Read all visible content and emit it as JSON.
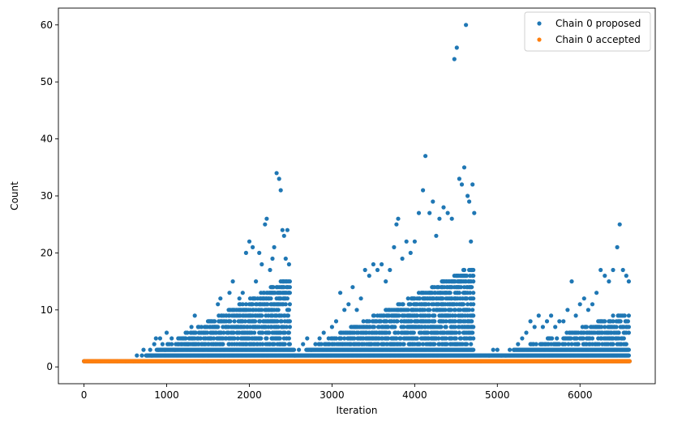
{
  "chart_data": {
    "type": "scatter",
    "title": "",
    "xlabel": "Iteration",
    "ylabel": "Count",
    "xlim": [
      -310,
      6910
    ],
    "ylim": [
      -2.95,
      62.95
    ],
    "xticks": [
      0,
      1000,
      2000,
      3000,
      4000,
      5000,
      6000
    ],
    "yticks": [
      0,
      10,
      20,
      30,
      40,
      50,
      60
    ],
    "grid": false,
    "legend_position": "top-right",
    "colors": {
      "proposed": "#1f77b4",
      "accepted": "#ff7f0e"
    },
    "series": [
      {
        "name": "Chain 0 proposed",
        "points": [
          [
            0,
            1
          ],
          [
            100,
            1
          ],
          [
            200,
            1
          ],
          [
            300,
            1
          ],
          [
            400,
            1
          ],
          [
            500,
            1
          ],
          [
            600,
            1
          ],
          [
            640,
            2
          ],
          [
            700,
            2
          ],
          [
            720,
            3
          ],
          [
            760,
            2
          ],
          [
            800,
            3
          ],
          [
            820,
            2
          ],
          [
            850,
            4
          ],
          [
            870,
            5
          ],
          [
            900,
            3
          ],
          [
            920,
            5
          ],
          [
            950,
            4
          ],
          [
            980,
            3
          ],
          [
            1000,
            6
          ],
          [
            1030,
            4
          ],
          [
            1060,
            5
          ],
          [
            1100,
            3
          ],
          [
            1150,
            4
          ],
          [
            1200,
            5
          ],
          [
            1230,
            6
          ],
          [
            1260,
            4
          ],
          [
            1300,
            7
          ],
          [
            1340,
            9
          ],
          [
            1380,
            5
          ],
          [
            1420,
            6
          ],
          [
            1460,
            7
          ],
          [
            1500,
            8
          ],
          [
            1540,
            6
          ],
          [
            1580,
            7
          ],
          [
            1620,
            11
          ],
          [
            1650,
            12
          ],
          [
            1690,
            8
          ],
          [
            1720,
            9
          ],
          [
            1760,
            13
          ],
          [
            1800,
            15
          ],
          [
            1840,
            10
          ],
          [
            1880,
            12
          ],
          [
            1920,
            13
          ],
          [
            1960,
            20
          ],
          [
            2000,
            22
          ],
          [
            2040,
            21
          ],
          [
            2080,
            15
          ],
          [
            2120,
            20
          ],
          [
            2150,
            18
          ],
          [
            2190,
            25
          ],
          [
            2210,
            26
          ],
          [
            2250,
            17
          ],
          [
            2280,
            19
          ],
          [
            2300,
            21
          ],
          [
            2330,
            34
          ],
          [
            2360,
            33
          ],
          [
            2380,
            31
          ],
          [
            2400,
            24
          ],
          [
            2420,
            23
          ],
          [
            2440,
            19
          ],
          [
            2460,
            24
          ],
          [
            2480,
            18
          ],
          [
            2550,
            2
          ],
          [
            2600,
            3
          ],
          [
            2650,
            4
          ],
          [
            2700,
            5
          ],
          [
            2750,
            3
          ],
          [
            2800,
            4
          ],
          [
            2850,
            5
          ],
          [
            2900,
            6
          ],
          [
            2950,
            4
          ],
          [
            3000,
            7
          ],
          [
            3050,
            8
          ],
          [
            3100,
            13
          ],
          [
            3150,
            10
          ],
          [
            3200,
            11
          ],
          [
            3250,
            14
          ],
          [
            3300,
            10
          ],
          [
            3350,
            12
          ],
          [
            3400,
            17
          ],
          [
            3450,
            16
          ],
          [
            3500,
            18
          ],
          [
            3550,
            17
          ],
          [
            3600,
            18
          ],
          [
            3650,
            15
          ],
          [
            3700,
            17
          ],
          [
            3750,
            21
          ],
          [
            3780,
            25
          ],
          [
            3800,
            26
          ],
          [
            3850,
            19
          ],
          [
            3900,
            22
          ],
          [
            3950,
            20
          ],
          [
            4000,
            22
          ],
          [
            4050,
            27
          ],
          [
            4100,
            31
          ],
          [
            4130,
            37
          ],
          [
            4180,
            27
          ],
          [
            4220,
            29
          ],
          [
            4260,
            23
          ],
          [
            4300,
            26
          ],
          [
            4350,
            28
          ],
          [
            4400,
            27
          ],
          [
            4450,
            26
          ],
          [
            4480,
            54
          ],
          [
            4510,
            56
          ],
          [
            4540,
            33
          ],
          [
            4570,
            32
          ],
          [
            4600,
            35
          ],
          [
            4620,
            60
          ],
          [
            4640,
            30
          ],
          [
            4660,
            29
          ],
          [
            4680,
            22
          ],
          [
            4700,
            32
          ],
          [
            4720,
            27
          ],
          [
            4800,
            1
          ],
          [
            4900,
            2
          ],
          [
            4950,
            3
          ],
          [
            5000,
            3
          ],
          [
            5050,
            2
          ],
          [
            5100,
            2
          ],
          [
            5150,
            3
          ],
          [
            5200,
            3
          ],
          [
            5250,
            4
          ],
          [
            5300,
            5
          ],
          [
            5350,
            6
          ],
          [
            5400,
            8
          ],
          [
            5450,
            7
          ],
          [
            5500,
            9
          ],
          [
            5550,
            7
          ],
          [
            5600,
            8
          ],
          [
            5650,
            9
          ],
          [
            5700,
            7
          ],
          [
            5750,
            8
          ],
          [
            5800,
            8
          ],
          [
            5850,
            10
          ],
          [
            5900,
            15
          ],
          [
            5950,
            9
          ],
          [
            6000,
            11
          ],
          [
            6050,
            12
          ],
          [
            6100,
            10
          ],
          [
            6150,
            11
          ],
          [
            6200,
            13
          ],
          [
            6250,
            17
          ],
          [
            6300,
            16
          ],
          [
            6350,
            15
          ],
          [
            6400,
            17
          ],
          [
            6450,
            21
          ],
          [
            6480,
            25
          ],
          [
            6520,
            17
          ],
          [
            6560,
            16
          ],
          [
            6590,
            15
          ]
        ]
      },
      {
        "name": "Chain 0 accepted",
        "points": [
          [
            0,
            1
          ],
          [
            6600,
            1
          ]
        ]
      }
    ]
  }
}
